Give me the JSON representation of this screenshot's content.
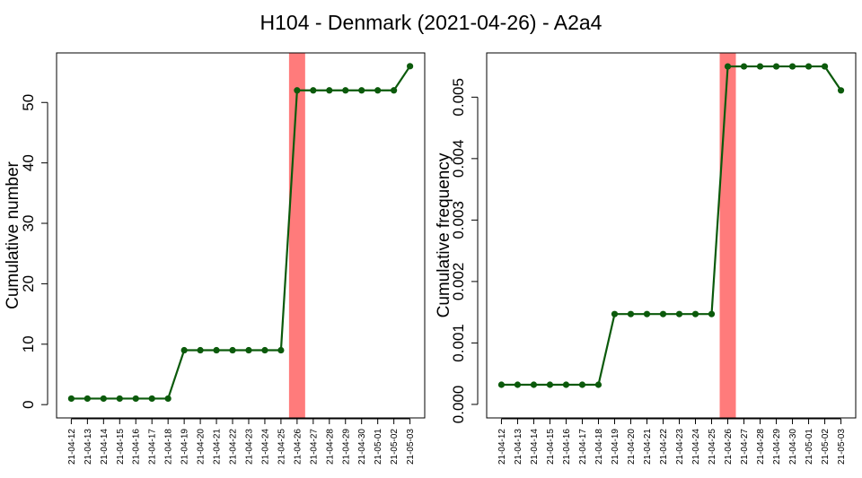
{
  "figure": {
    "title": "H104 - Denmark (2021-04-26) - A2a4"
  },
  "colors": {
    "line": "#0b5a0b",
    "highlight": "#ff7b7b",
    "axis": "#000000"
  },
  "chart_data": [
    {
      "type": "line",
      "title": "",
      "xlabel": "",
      "ylabel": "Cumulative number",
      "categories": [
        "21-04-12",
        "21-04-13",
        "21-04-14",
        "21-04-15",
        "21-04-16",
        "21-04-17",
        "21-04-18",
        "21-04-19",
        "21-04-20",
        "21-04-21",
        "21-04-22",
        "21-04-23",
        "21-04-24",
        "21-04-25",
        "21-04-26",
        "21-04-27",
        "21-04-28",
        "21-04-29",
        "21-04-30",
        "21-05-01",
        "21-05-02",
        "21-05-03"
      ],
      "values": [
        1,
        1,
        1,
        1,
        1,
        1,
        1,
        9,
        9,
        9,
        9,
        9,
        9,
        9,
        52,
        52,
        52,
        52,
        52,
        52,
        52,
        56
      ],
      "highlight_category": "21-04-26",
      "ylim": [
        -2.2,
        58.2
      ],
      "yticks": [
        0,
        10,
        20,
        30,
        40,
        50
      ],
      "ytick_labels": [
        "0",
        "10",
        "20",
        "30",
        "40",
        "50"
      ],
      "grid": false
    },
    {
      "type": "line",
      "title": "",
      "xlabel": "",
      "ylabel": "Cumulative frequency",
      "categories": [
        "21-04-12",
        "21-04-13",
        "21-04-14",
        "21-04-15",
        "21-04-16",
        "21-04-17",
        "21-04-18",
        "21-04-19",
        "21-04-20",
        "21-04-21",
        "21-04-22",
        "21-04-23",
        "21-04-24",
        "21-04-25",
        "21-04-26",
        "21-04-27",
        "21-04-28",
        "21-04-29",
        "21-04-30",
        "21-05-01",
        "21-05-02",
        "21-05-03"
      ],
      "values": [
        0.00032,
        0.00032,
        0.00032,
        0.00032,
        0.00032,
        0.00032,
        0.00032,
        0.00147,
        0.00147,
        0.00147,
        0.00147,
        0.00147,
        0.00147,
        0.00147,
        0.0055,
        0.0055,
        0.0055,
        0.0055,
        0.0055,
        0.0055,
        0.0055,
        0.00511
      ],
      "highlight_category": "21-04-26",
      "ylim": [
        -0.00022,
        0.00572
      ],
      "yticks": [
        0,
        0.001,
        0.002,
        0.003,
        0.004,
        0.005
      ],
      "ytick_labels": [
        "0.000",
        "0.001",
        "0.002",
        "0.003",
        "0.004",
        "0.005"
      ],
      "grid": false
    }
  ]
}
